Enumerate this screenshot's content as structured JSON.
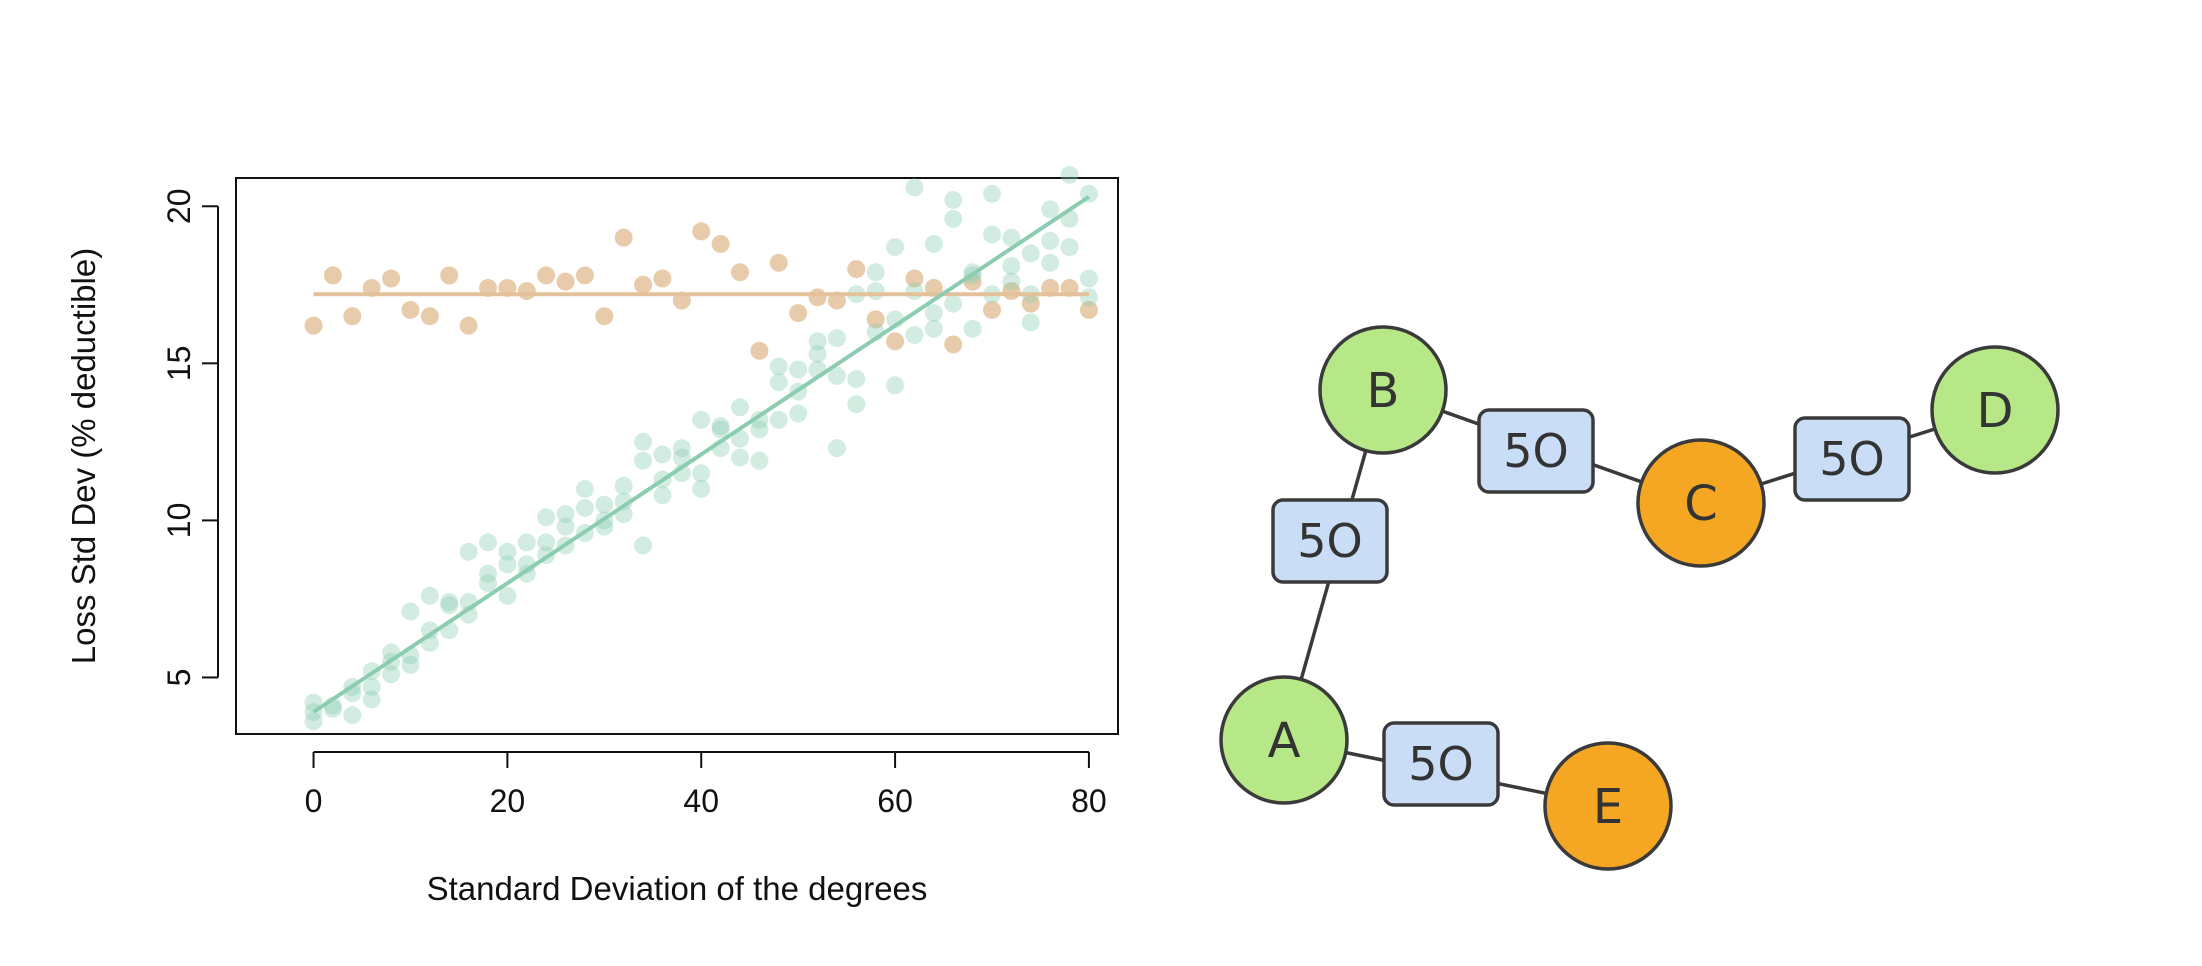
{
  "chart_data": {
    "type": "scatter",
    "xlabel": "Standard Deviation of the degrees",
    "ylabel": "Loss Std Dev (% deductible)",
    "xlim": [
      -8,
      83
    ],
    "ylim": [
      3.2,
      20.9
    ],
    "xticks": [
      0,
      20,
      40,
      60,
      80
    ],
    "yticks": [
      5,
      10,
      15,
      20
    ],
    "grid": false,
    "series": [
      {
        "color": "#e3c29b",
        "fit": {
          "x": [
            0,
            80
          ],
          "y": [
            17.2,
            17.2
          ]
        },
        "points": [
          [
            0,
            16.2
          ],
          [
            2,
            17.8
          ],
          [
            4,
            16.5
          ],
          [
            6,
            17.4
          ],
          [
            8,
            17.7
          ],
          [
            10,
            16.7
          ],
          [
            12,
            16.5
          ],
          [
            14,
            17.8
          ],
          [
            16,
            16.2
          ],
          [
            18,
            17.4
          ],
          [
            20,
            17.4
          ],
          [
            22,
            17.3
          ],
          [
            24,
            17.8
          ],
          [
            26,
            17.6
          ],
          [
            28,
            17.8
          ],
          [
            30,
            16.5
          ],
          [
            32,
            19.0
          ],
          [
            34,
            17.5
          ],
          [
            36,
            17.7
          ],
          [
            38,
            17.0
          ],
          [
            40,
            19.2
          ],
          [
            42,
            18.8
          ],
          [
            44,
            17.9
          ],
          [
            46,
            15.4
          ],
          [
            48,
            18.2
          ],
          [
            50,
            16.6
          ],
          [
            52,
            17.1
          ],
          [
            54,
            17.0
          ],
          [
            56,
            18.0
          ],
          [
            58,
            16.4
          ],
          [
            60,
            15.7
          ],
          [
            62,
            17.7
          ],
          [
            64,
            17.4
          ],
          [
            66,
            15.6
          ],
          [
            68,
            17.6
          ],
          [
            70,
            16.7
          ],
          [
            72,
            17.3
          ],
          [
            74,
            16.9
          ],
          [
            76,
            17.4
          ],
          [
            78,
            17.4
          ],
          [
            80,
            16.7
          ]
        ]
      },
      {
        "color": "#8ccdb2",
        "fit": {
          "x": [
            0,
            80
          ],
          "y": [
            3.9,
            20.3
          ]
        },
        "points": [
          [
            0,
            3.6
          ],
          [
            0,
            3.9
          ],
          [
            0,
            4.2
          ],
          [
            2,
            4.0
          ],
          [
            2,
            4.1
          ],
          [
            4,
            3.8
          ],
          [
            4,
            4.5
          ],
          [
            4,
            4.7
          ],
          [
            6,
            4.3
          ],
          [
            6,
            4.7
          ],
          [
            6,
            5.2
          ],
          [
            8,
            5.1
          ],
          [
            8,
            5.5
          ],
          [
            8,
            5.8
          ],
          [
            10,
            5.4
          ],
          [
            10,
            5.7
          ],
          [
            10,
            7.1
          ],
          [
            12,
            6.1
          ],
          [
            12,
            6.5
          ],
          [
            12,
            7.6
          ],
          [
            14,
            6.5
          ],
          [
            14,
            7.3
          ],
          [
            14,
            7.4
          ],
          [
            16,
            7.0
          ],
          [
            16,
            7.4
          ],
          [
            16,
            9.0
          ],
          [
            18,
            8.0
          ],
          [
            18,
            8.3
          ],
          [
            18,
            9.3
          ],
          [
            20,
            7.6
          ],
          [
            20,
            8.6
          ],
          [
            20,
            9.0
          ],
          [
            22,
            8.3
          ],
          [
            22,
            8.6
          ],
          [
            22,
            9.3
          ],
          [
            24,
            8.9
          ],
          [
            24,
            9.3
          ],
          [
            24,
            10.1
          ],
          [
            26,
            9.2
          ],
          [
            26,
            9.8
          ],
          [
            26,
            10.2
          ],
          [
            28,
            9.6
          ],
          [
            28,
            10.4
          ],
          [
            28,
            11.0
          ],
          [
            30,
            9.8
          ],
          [
            30,
            10.0
          ],
          [
            30,
            10.5
          ],
          [
            32,
            10.2
          ],
          [
            32,
            10.6
          ],
          [
            32,
            11.1
          ],
          [
            34,
            9.2
          ],
          [
            34,
            11.9
          ],
          [
            34,
            12.5
          ],
          [
            36,
            10.8
          ],
          [
            36,
            11.3
          ],
          [
            36,
            12.1
          ],
          [
            38,
            11.5
          ],
          [
            38,
            12.0
          ],
          [
            38,
            12.3
          ],
          [
            40,
            11.0
          ],
          [
            40,
            11.5
          ],
          [
            40,
            13.2
          ],
          [
            42,
            12.3
          ],
          [
            42,
            12.9
          ],
          [
            42,
            13.0
          ],
          [
            44,
            12.0
          ],
          [
            44,
            12.6
          ],
          [
            44,
            13.6
          ],
          [
            46,
            11.9
          ],
          [
            46,
            12.9
          ],
          [
            46,
            13.2
          ],
          [
            48,
            13.2
          ],
          [
            48,
            14.4
          ],
          [
            48,
            14.9
          ],
          [
            50,
            13.4
          ],
          [
            50,
            14.1
          ],
          [
            50,
            14.8
          ],
          [
            52,
            14.8
          ],
          [
            52,
            15.3
          ],
          [
            52,
            15.7
          ],
          [
            54,
            12.3
          ],
          [
            54,
            14.6
          ],
          [
            54,
            15.8
          ],
          [
            56,
            13.7
          ],
          [
            56,
            14.5
          ],
          [
            56,
            17.2
          ],
          [
            58,
            16.0
          ],
          [
            58,
            17.3
          ],
          [
            58,
            17.9
          ],
          [
            60,
            14.3
          ],
          [
            60,
            16.4
          ],
          [
            60,
            18.7
          ],
          [
            62,
            15.9
          ],
          [
            62,
            17.3
          ],
          [
            62,
            20.6
          ],
          [
            64,
            16.1
          ],
          [
            64,
            16.6
          ],
          [
            64,
            18.8
          ],
          [
            66,
            16.9
          ],
          [
            66,
            19.6
          ],
          [
            66,
            20.2
          ],
          [
            68,
            16.1
          ],
          [
            68,
            17.8
          ],
          [
            68,
            17.9
          ],
          [
            70,
            17.2
          ],
          [
            70,
            19.1
          ],
          [
            70,
            20.4
          ],
          [
            72,
            17.6
          ],
          [
            72,
            18.1
          ],
          [
            72,
            19.0
          ],
          [
            74,
            16.3
          ],
          [
            74,
            17.2
          ],
          [
            74,
            18.5
          ],
          [
            76,
            18.2
          ],
          [
            76,
            18.9
          ],
          [
            76,
            19.9
          ],
          [
            78,
            18.7
          ],
          [
            78,
            19.6
          ],
          [
            78,
            21.0
          ],
          [
            80,
            17.1
          ],
          [
            80,
            17.7
          ],
          [
            80,
            20.4
          ]
        ]
      }
    ]
  },
  "graph": {
    "nodes": [
      {
        "id": "A",
        "label": "A",
        "color": "#b7e887"
      },
      {
        "id": "B",
        "label": "B",
        "color": "#b7e887"
      },
      {
        "id": "C",
        "label": "C",
        "color": "#f5a623"
      },
      {
        "id": "D",
        "label": "D",
        "color": "#b7e887"
      },
      {
        "id": "E",
        "label": "E",
        "color": "#f5a623"
      }
    ],
    "edges": [
      {
        "from": "A",
        "to": "B",
        "label": "5O"
      },
      {
        "from": "B",
        "to": "C",
        "label": "5O"
      },
      {
        "from": "C",
        "to": "D",
        "label": "5O"
      },
      {
        "from": "A",
        "to": "E",
        "label": "5O"
      }
    ],
    "edge_label_fill": "#c9ddf6",
    "stroke": "#3a3a3a"
  }
}
